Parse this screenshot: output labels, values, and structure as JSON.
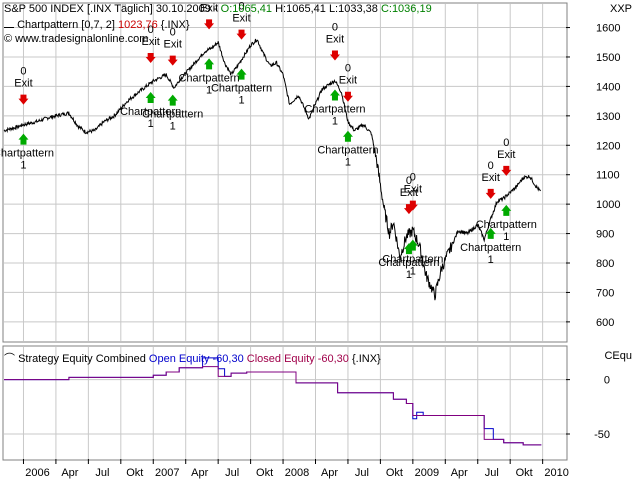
{
  "price_header": {
    "symbol_line": "S&P 500 INDEX [.INX Täglich] 30.10.2009 -",
    "open": "O:1065,41",
    "high": "H:1065,41",
    "low": "L:1033,38",
    "close": "C:1036,19",
    "indicator_name": "Chartpattern [0,7, 2]",
    "indicator_value": "1023,76",
    "indicator_sym": "{.INX}",
    "website": "www.tradesignalonline.com",
    "axis_tag": "XXP"
  },
  "equity_header": {
    "name": "Strategy Equity Combined",
    "open_label": "Open Equity -60,30",
    "closed_label": "Closed Equity -60,30",
    "sym": "{.INX}",
    "axis_tag": "CEqu"
  },
  "colors": {
    "price": "#000000",
    "entry_arrow": "#00aa00",
    "exit_arrow": "#dd0000",
    "open_equity": "#0000cc",
    "closed_equity": "#800080",
    "grid": "#c8c8c8"
  },
  "chart_data": [
    {
      "type": "line",
      "title": "S&P 500 INDEX",
      "x_ticks": [
        "2006",
        "Apr",
        "Jul",
        "Okt",
        "2007",
        "Apr",
        "Jul",
        "Okt",
        "2008",
        "Apr",
        "Jul",
        "Okt",
        "2009",
        "Apr",
        "Jul",
        "Okt",
        "2010"
      ],
      "y_ticks": [
        600,
        700,
        800,
        900,
        1000,
        1100,
        1200,
        1300,
        1400,
        1500,
        1600
      ],
      "ylim": [
        535,
        1680
      ],
      "xlim": [
        2005.85,
        2010.18
      ],
      "grid": true,
      "series": [
        {
          "values": [
            [
              2005.85,
              1250
            ],
            [
              2005.95,
              1262
            ],
            [
              2006.0,
              1270
            ],
            [
              2006.1,
              1280
            ],
            [
              2006.2,
              1295
            ],
            [
              2006.3,
              1305
            ],
            [
              2006.35,
              1310
            ],
            [
              2006.42,
              1265
            ],
            [
              2006.48,
              1245
            ],
            [
              2006.55,
              1250
            ],
            [
              2006.62,
              1280
            ],
            [
              2006.7,
              1300
            ],
            [
              2006.8,
              1350
            ],
            [
              2006.9,
              1385
            ],
            [
              2007.0,
              1418
            ],
            [
              2007.1,
              1440
            ],
            [
              2007.16,
              1395
            ],
            [
              2007.2,
              1420
            ],
            [
              2007.3,
              1470
            ],
            [
              2007.4,
              1520
            ],
            [
              2007.45,
              1530
            ],
            [
              2007.5,
              1550
            ],
            [
              2007.55,
              1480
            ],
            [
              2007.6,
              1440
            ],
            [
              2007.65,
              1470
            ],
            [
              2007.75,
              1540
            ],
            [
              2007.8,
              1560
            ],
            [
              2007.85,
              1510
            ],
            [
              2007.9,
              1470
            ],
            [
              2007.95,
              1480
            ],
            [
              2008.0,
              1440
            ],
            [
              2008.05,
              1340
            ],
            [
              2008.12,
              1370
            ],
            [
              2008.2,
              1290
            ],
            [
              2008.3,
              1390
            ],
            [
              2008.4,
              1420
            ],
            [
              2008.45,
              1380
            ],
            [
              2008.5,
              1280
            ],
            [
              2008.55,
              1250
            ],
            [
              2008.62,
              1270
            ],
            [
              2008.68,
              1240
            ],
            [
              2008.72,
              1150
            ],
            [
              2008.78,
              980
            ],
            [
              2008.82,
              900
            ],
            [
              2008.85,
              940
            ],
            [
              2008.9,
              820
            ],
            [
              2008.95,
              890
            ],
            [
              2009.0,
              910
            ],
            [
              2009.05,
              860
            ],
            [
              2009.1,
              760
            ],
            [
              2009.17,
              690
            ],
            [
              2009.22,
              780
            ],
            [
              2009.3,
              860
            ],
            [
              2009.35,
              910
            ],
            [
              2009.42,
              900
            ],
            [
              2009.5,
              930
            ],
            [
              2009.55,
              880
            ],
            [
              2009.6,
              950
            ],
            [
              2009.65,
              1010
            ],
            [
              2009.7,
              1020
            ],
            [
              2009.75,
              1040
            ],
            [
              2009.8,
              1060
            ],
            [
              2009.85,
              1090
            ],
            [
              2009.9,
              1095
            ],
            [
              2009.95,
              1060
            ],
            [
              2009.99,
              1040
            ]
          ]
        }
      ],
      "annotations": [
        {
          "x": 2006.0,
          "label": "Chartpattern",
          "count": "1",
          "count_top": "0",
          "exit": "Exit"
        },
        {
          "x": 2006.98,
          "label": "Chartpattern",
          "count": "1",
          "count_top": "0",
          "exit": "Exit"
        },
        {
          "x": 2007.15,
          "label": "Chartpattern",
          "count": "1",
          "count_top": "0",
          "exit": "Exit"
        },
        {
          "x": 2007.43,
          "label": "Chartpattern",
          "count": "1",
          "count_top": "0",
          "exit": "Exit"
        },
        {
          "x": 2007.68,
          "label": "Chartpattern",
          "count": "1",
          "count_top": "0",
          "exit": "Exit"
        },
        {
          "x": 2008.4,
          "label": "Chartpattern",
          "count": "1",
          "count_top": "0",
          "exit": "Exit"
        },
        {
          "x": 2008.5,
          "label": "Chartpattern",
          "count": "1",
          "count_top": "0",
          "exit": "Exit"
        },
        {
          "x": 2008.97,
          "label": "Chartpattern",
          "count": "1",
          "count_top": "0",
          "exit": "Exit"
        },
        {
          "x": 2009.0,
          "label": "Chartpattern",
          "count": "1",
          "count_top": "0",
          "exit": "Exit"
        },
        {
          "x": 2009.6,
          "label": "Chartpattern",
          "count": "1",
          "count_top": "0",
          "exit": "Exit"
        },
        {
          "x": 2009.72,
          "label": "Chartpattern",
          "count": "1",
          "count_top": "0",
          "exit": "Exit"
        }
      ]
    },
    {
      "type": "line",
      "title": "Strategy Equity Combined",
      "y_ticks": [
        0,
        -50
      ],
      "ylim": [
        -73,
        30
      ],
      "xlim": [
        2005.85,
        2010.18
      ],
      "grid": true,
      "series": [
        {
          "name": "Open Equity",
          "values": [
            [
              2005.85,
              0
            ],
            [
              2006.35,
              0
            ],
            [
              2006.35,
              2
            ],
            [
              2007.0,
              2
            ],
            [
              2007.0,
              4
            ],
            [
              2007.1,
              4
            ],
            [
              2007.1,
              7
            ],
            [
              2007.2,
              7
            ],
            [
              2007.2,
              11
            ],
            [
              2007.38,
              11
            ],
            [
              2007.38,
              20
            ],
            [
              2007.5,
              20
            ],
            [
              2007.5,
              10
            ],
            [
              2007.55,
              10
            ],
            [
              2007.55,
              3
            ],
            [
              2007.6,
              3
            ],
            [
              2007.6,
              6
            ],
            [
              2007.72,
              6
            ],
            [
              2007.72,
              7
            ],
            [
              2008.1,
              7
            ],
            [
              2008.1,
              -3
            ],
            [
              2008.42,
              -3
            ],
            [
              2008.42,
              -12
            ],
            [
              2008.85,
              -12
            ],
            [
              2008.85,
              -18
            ],
            [
              2008.95,
              -18
            ],
            [
              2008.95,
              -22
            ],
            [
              2009.0,
              -22
            ],
            [
              2009.0,
              -36
            ],
            [
              2009.03,
              -36
            ],
            [
              2009.03,
              -30
            ],
            [
              2009.08,
              -30
            ],
            [
              2009.08,
              -33
            ],
            [
              2009.55,
              -33
            ],
            [
              2009.55,
              -45
            ],
            [
              2009.62,
              -45
            ],
            [
              2009.62,
              -55
            ],
            [
              2009.7,
              -55
            ],
            [
              2009.7,
              -58
            ],
            [
              2009.85,
              -58
            ],
            [
              2009.85,
              -60
            ],
            [
              2009.99,
              -60
            ]
          ]
        },
        {
          "name": "Closed Equity",
          "values": [
            [
              2005.85,
              0
            ],
            [
              2006.35,
              0
            ],
            [
              2006.35,
              2
            ],
            [
              2007.0,
              2
            ],
            [
              2007.0,
              4
            ],
            [
              2007.1,
              4
            ],
            [
              2007.1,
              7
            ],
            [
              2007.2,
              7
            ],
            [
              2007.2,
              11
            ],
            [
              2007.38,
              11
            ],
            [
              2007.38,
              12
            ],
            [
              2007.5,
              12
            ],
            [
              2007.5,
              3
            ],
            [
              2007.6,
              3
            ],
            [
              2007.6,
              6
            ],
            [
              2007.72,
              6
            ],
            [
              2007.72,
              7
            ],
            [
              2008.1,
              7
            ],
            [
              2008.1,
              -3
            ],
            [
              2008.42,
              -3
            ],
            [
              2008.42,
              -12
            ],
            [
              2008.85,
              -12
            ],
            [
              2008.85,
              -18
            ],
            [
              2008.95,
              -18
            ],
            [
              2008.95,
              -22
            ],
            [
              2009.0,
              -22
            ],
            [
              2009.0,
              -33
            ],
            [
              2009.55,
              -33
            ],
            [
              2009.55,
              -55
            ],
            [
              2009.7,
              -55
            ],
            [
              2009.7,
              -58
            ],
            [
              2009.85,
              -58
            ],
            [
              2009.85,
              -60
            ],
            [
              2009.99,
              -60
            ]
          ]
        }
      ]
    }
  ]
}
